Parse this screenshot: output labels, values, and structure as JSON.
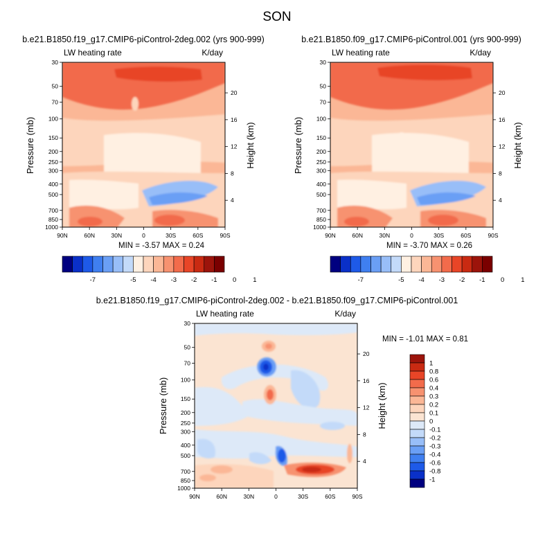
{
  "figure": {
    "title": "SON"
  },
  "panels": [
    {
      "id": "left",
      "case": "b.e21.B1850.f19_g17.CMIP6-piControl-2deg.002 (yrs 900-999)",
      "field": "LW heating rate",
      "units": "K/day",
      "ylabel": "Pressure (mb)",
      "ylabel_right": "Height (km)",
      "stats": "MIN =  -3.57   MAX =   0.24"
    },
    {
      "id": "right",
      "case": "b.e21.B1850.f09_g17.CMIP6-piControl.001 (yrs 900-999)",
      "field": "LW heating rate",
      "units": "K/day",
      "ylabel": "Pressure (mb)",
      "ylabel_right": "Height (km)",
      "stats": "MIN =  -3.70   MAX =   0.26"
    },
    {
      "id": "diff",
      "case": "b.e21.B1850.f19_g17.CMIP6-piControl-2deg.002 - b.e21.B1850.f09_g17.CMIP6-piControl.001",
      "field": "LW heating rate",
      "units": "K/day",
      "ylabel": "Pressure (mb)",
      "ylabel_right": "Height (km)",
      "stats": "MIN =  -1.01   MAX =   0.81"
    }
  ],
  "chart_data": [
    {
      "type": "heatmap",
      "panel": "left",
      "title": "b.e21.B1850.f19_g17.CMIP6-piControl-2deg.002 (yrs 900-999)",
      "xlabel": "",
      "ylabel": "Pressure (mb)",
      "x_ticks": [
        "90N",
        "60N",
        "30N",
        "0",
        "30S",
        "60S",
        "90S"
      ],
      "y_ticks": [
        "30",
        "50",
        "70",
        "100",
        "150",
        "200",
        "250",
        "300",
        "400",
        "500",
        "700",
        "850",
        "1000"
      ],
      "y_ticks_right": [
        "20",
        "16",
        "12",
        "8",
        "4"
      ],
      "min": -3.57,
      "max": 0.24,
      "colorbar_ticks": [
        "-7",
        "-5",
        "-4",
        "-3",
        "-2",
        "-1",
        "0",
        "1"
      ]
    },
    {
      "type": "heatmap",
      "panel": "right",
      "title": "b.e21.B1850.f09_g17.CMIP6-piControl.001 (yrs 900-999)",
      "xlabel": "",
      "ylabel": "Pressure (mb)",
      "x_ticks": [
        "90N",
        "60N",
        "30N",
        "0",
        "30S",
        "60S",
        "90S"
      ],
      "y_ticks": [
        "30",
        "50",
        "70",
        "100",
        "150",
        "200",
        "250",
        "300",
        "400",
        "500",
        "700",
        "850",
        "1000"
      ],
      "y_ticks_right": [
        "20",
        "16",
        "12",
        "8",
        "4"
      ],
      "min": -3.7,
      "max": 0.26,
      "colorbar_ticks": [
        "-7",
        "-5",
        "-4",
        "-3",
        "-2",
        "-1",
        "0",
        "1"
      ]
    },
    {
      "type": "heatmap",
      "panel": "diff",
      "title": "b.e21.B1850.f19_g17.CMIP6-piControl-2deg.002 - b.e21.B1850.f09_g17.CMIP6-piControl.001",
      "xlabel": "",
      "ylabel": "Pressure (mb)",
      "x_ticks": [
        "90N",
        "60N",
        "30N",
        "0",
        "30S",
        "60S",
        "90S"
      ],
      "y_ticks": [
        "30",
        "50",
        "70",
        "100",
        "150",
        "200",
        "250",
        "300",
        "400",
        "500",
        "700",
        "850",
        "1000"
      ],
      "y_ticks_right": [
        "20",
        "16",
        "12",
        "8",
        "4"
      ],
      "min": -1.01,
      "max": 0.81,
      "colorbar_ticks": [
        "1",
        "0.8",
        "0.6",
        "0.4",
        "0.3",
        "0.2",
        "0.1",
        "0",
        "-0.1",
        "-0.2",
        "-0.3",
        "-0.4",
        "-0.6",
        "-0.8",
        "-1"
      ]
    }
  ],
  "colors": {
    "abs_scale": [
      "#000080",
      "#0a30c8",
      "#1e5ae8",
      "#3f7ff0",
      "#6a9ff5",
      "#98bef8",
      "#c3daf9",
      "#fff0e2",
      "#fdd5bc",
      "#fbb796",
      "#f79270",
      "#f26b4b",
      "#e84527",
      "#c92a12",
      "#9c140b",
      "#7a0000"
    ],
    "diff_scale": [
      "#9c140b",
      "#c92a12",
      "#e84527",
      "#f26b4b",
      "#f79270",
      "#fbb796",
      "#fdd5bc",
      "#fbe4d2",
      "#dde9f8",
      "#c3daf9",
      "#98bef8",
      "#6a9ff5",
      "#3f7ff0",
      "#1e5ae8",
      "#0a30c8",
      "#000080"
    ]
  }
}
